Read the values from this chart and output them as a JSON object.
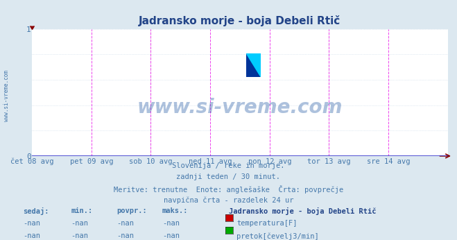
{
  "title_text": "Jadransko morje - boja Debeli Rtič",
  "bg_color": "#dce8f0",
  "plot_bg_color": "#ffffff",
  "grid_h_color": "#c8d8e8",
  "grid_v_color": "#c8c8c8",
  "text_color": "#4477aa",
  "title_color": "#224488",
  "xlabel_ticks_text": [
    "čet 08 avg",
    "pet 09 avg",
    "sob 10 avg",
    "ned 11 avg",
    "pon 12 avg",
    "tor 13 avg",
    "sre 14 avg"
  ],
  "xlim": [
    0,
    336
  ],
  "ylim": [
    0,
    1
  ],
  "yticks": [
    0,
    1
  ],
  "xtick_positions": [
    0,
    48,
    96,
    144,
    192,
    240,
    288
  ],
  "magenta_vline_positions": [
    48,
    96,
    144,
    192,
    240,
    288,
    336
  ],
  "gray_vline_positions": [
    96,
    240
  ],
  "hgrid_positions": [
    0.0,
    0.2,
    0.4,
    0.6,
    0.8,
    1.0
  ],
  "watermark_text": "www.si-vreme.com",
  "watermark_color": "#3366aa",
  "left_watermark": "www.si-vreme.com",
  "magenta_vline_color": "#ee44ee",
  "gray_vline_color": "#aaaaaa",
  "axis_line_color": "#3333cc",
  "arrow_color": "#880000",
  "icon_colors": [
    "#ffff00",
    "#00ccff",
    "#0033aa",
    "#00ccff"
  ],
  "subtitle_lines": [
    "Slovenija / reke in morje.",
    "zadnji teden / 30 minut.",
    "Meritve: trenutne  Enote: anglešaške  Črta: povprečje",
    "navpična črta - razdelek 24 ur"
  ],
  "legend_title": "Jadransko morje - boja Debeli Rtič",
  "legend_entries": [
    {
      "label": "temperatura[F]",
      "color": "#cc0000"
    },
    {
      "label": "pretok[čevelj3/min]",
      "color": "#00aa00"
    }
  ],
  "table_headers": [
    "sedaj:",
    "min.:",
    "povpr.:",
    "maks.:"
  ],
  "table_rows": [
    [
      "-nan",
      "-nan",
      "-nan",
      "-nan"
    ],
    [
      "-nan",
      "-nan",
      "-nan",
      "-nan"
    ]
  ]
}
